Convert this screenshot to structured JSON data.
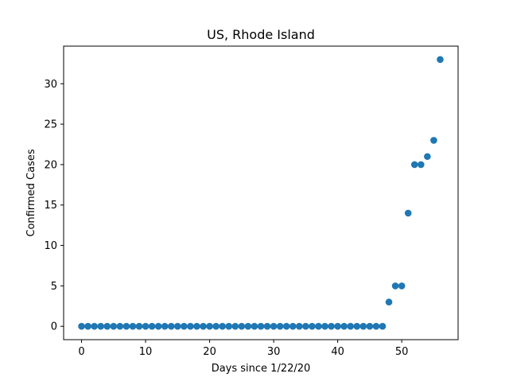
{
  "chart_data": {
    "type": "scatter",
    "title": "US, Rhode Island",
    "xlabel": "Days since 1/22/20",
    "ylabel": "Confirmed Cases",
    "xlim": [
      -2.8,
      58.8
    ],
    "ylim": [
      -1.65,
      34.65
    ],
    "xticks": [
      0,
      10,
      20,
      30,
      40,
      50
    ],
    "yticks": [
      0,
      5,
      10,
      15,
      20,
      25,
      30
    ],
    "grid": false,
    "marker_color": "#1f77b4",
    "series": [
      {
        "x": [
          0,
          1,
          2,
          3,
          4,
          5,
          6,
          7,
          8,
          9,
          10,
          11,
          12,
          13,
          14,
          15,
          16,
          17,
          18,
          19,
          20,
          21,
          22,
          23,
          24,
          25,
          26,
          27,
          28,
          29,
          30,
          31,
          32,
          33,
          34,
          35,
          36,
          37,
          38,
          39,
          40,
          41,
          42,
          43,
          44,
          45,
          46,
          47,
          48,
          49,
          50,
          51,
          52,
          53,
          54,
          55,
          56
        ],
        "y": [
          0,
          0,
          0,
          0,
          0,
          0,
          0,
          0,
          0,
          0,
          0,
          0,
          0,
          0,
          0,
          0,
          0,
          0,
          0,
          0,
          0,
          0,
          0,
          0,
          0,
          0,
          0,
          0,
          0,
          0,
          0,
          0,
          0,
          0,
          0,
          0,
          0,
          0,
          0,
          0,
          0,
          0,
          0,
          0,
          0,
          0,
          0,
          0,
          3,
          5,
          5,
          14,
          20,
          20,
          21,
          23,
          33
        ]
      }
    ]
  }
}
